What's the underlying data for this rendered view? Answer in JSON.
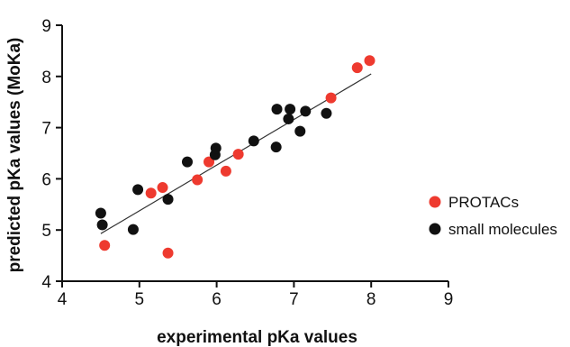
{
  "chart_data": {
    "type": "scatter",
    "title": "",
    "xlabel": "experimental pKa values",
    "ylabel": "predicted pKa values (MoKa)",
    "xlim": [
      4,
      9
    ],
    "ylim": [
      4,
      9
    ],
    "xticks": [
      "4",
      "5",
      "6",
      "7",
      "8",
      "9"
    ],
    "yticks": [
      "4",
      "5",
      "6",
      "7",
      "8",
      "9"
    ],
    "grid": false,
    "legend_position": "right",
    "trendline": {
      "x": [
        4.5,
        8.0
      ],
      "y": [
        4.93,
        8.05
      ]
    },
    "series": [
      {
        "name": "PROTACs",
        "color": "#ee3a2f",
        "points": [
          [
            4.55,
            4.7
          ],
          [
            5.15,
            5.72
          ],
          [
            5.3,
            5.83
          ],
          [
            5.37,
            4.55
          ],
          [
            5.75,
            5.98
          ],
          [
            5.9,
            6.33
          ],
          [
            6.12,
            6.15
          ],
          [
            6.28,
            6.48
          ],
          [
            7.48,
            7.58
          ],
          [
            7.82,
            8.17
          ],
          [
            7.98,
            8.31
          ]
        ]
      },
      {
        "name": "small molecules",
        "color": "#111111",
        "points": [
          [
            4.5,
            5.33
          ],
          [
            4.52,
            5.1
          ],
          [
            4.92,
            5.01
          ],
          [
            4.98,
            5.79
          ],
          [
            5.37,
            5.6
          ],
          [
            5.62,
            6.33
          ],
          [
            5.98,
            6.47
          ],
          [
            5.99,
            6.6
          ],
          [
            6.48,
            6.74
          ],
          [
            6.77,
            6.62
          ],
          [
            6.78,
            7.36
          ],
          [
            6.93,
            7.17
          ],
          [
            6.95,
            7.36
          ],
          [
            7.08,
            6.93
          ],
          [
            7.15,
            7.32
          ],
          [
            7.42,
            7.28
          ]
        ]
      }
    ]
  }
}
